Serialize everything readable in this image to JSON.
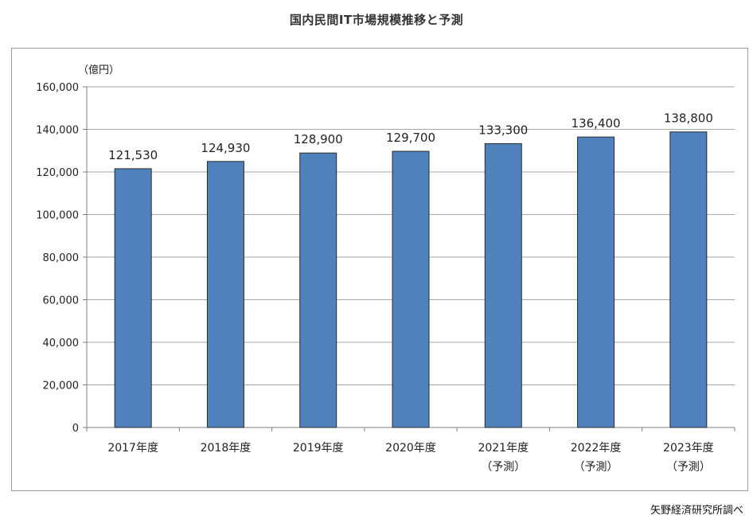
{
  "chart_data": {
    "type": "bar",
    "title": "国内民間IT市場規模推移と予測",
    "ylabel": "（億円）",
    "xlabel": "",
    "ylim": [
      0,
      160000
    ],
    "yticks": [
      0,
      20000,
      40000,
      60000,
      80000,
      100000,
      120000,
      140000,
      160000
    ],
    "ytick_labels": [
      "0",
      "20,000",
      "40,000",
      "60,000",
      "80,000",
      "100,000",
      "120,000",
      "140,000",
      "160,000"
    ],
    "categories": [
      [
        "2017年度"
      ],
      [
        "2018年度"
      ],
      [
        "2019年度"
      ],
      [
        "2020年度"
      ],
      [
        "2021年度",
        "（予測）"
      ],
      [
        "2022年度",
        "（予測）"
      ],
      [
        "2023年度",
        "（予測）"
      ]
    ],
    "values": [
      121530,
      124930,
      128900,
      129700,
      133300,
      136400,
      138800
    ],
    "value_labels": [
      "121,530",
      "124,930",
      "128,900",
      "129,700",
      "133,300",
      "136,400",
      "138,800"
    ],
    "bar_color": "#4f81bd",
    "bar_edge_color": "#2a2a2a",
    "grid": true,
    "grid_color": "#a6a6a6",
    "legend": "none"
  },
  "source": "矢野経済研究所調べ"
}
